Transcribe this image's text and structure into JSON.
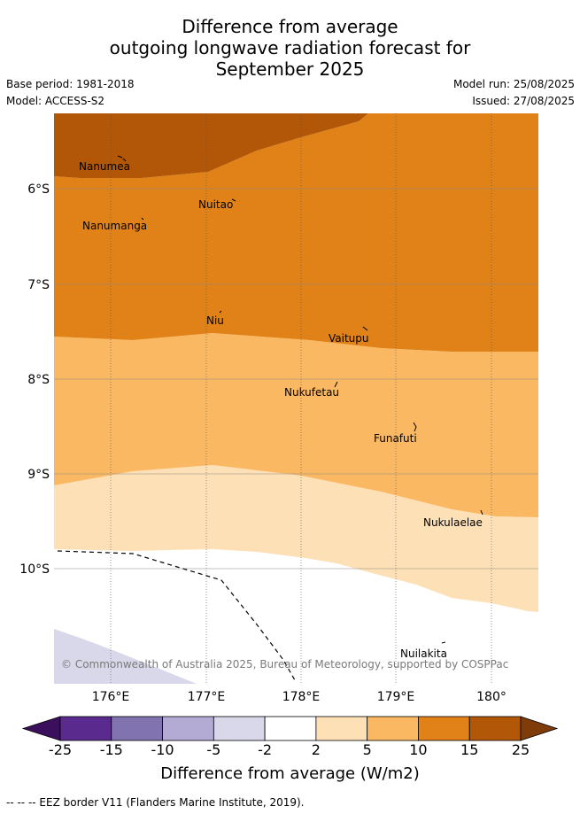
{
  "header": {
    "title_line1": "Difference from average",
    "title_line2": "outgoing longwave radiation forecast for",
    "title_line3": "September 2025",
    "base_period": "Base period: 1981-2018",
    "model": "Model: ACCESS-S2",
    "model_run": "Model run: 25/08/2025",
    "issued": "Issued: 27/08/2025"
  },
  "map": {
    "lon_ticks": [
      "176°E",
      "177°E",
      "178°E",
      "179°E",
      "180°"
    ],
    "lat_ticks": [
      "6°S",
      "7°S",
      "8°S",
      "9°S",
      "10°S"
    ],
    "places": [
      "Nanumea",
      "Nuitao",
      "Nanumanga",
      "Niu",
      "Vaitupu",
      "Nukufetau",
      "Funafuti",
      "Nukulaelae",
      "Nuilakita"
    ],
    "copyright": "© Commonwealth of Australia 2025, Bureau of Meteorology, supported by COSPPac"
  },
  "colorbar": {
    "labels": [
      "-25",
      "-15",
      "-10",
      "-5",
      "-2",
      "2",
      "5",
      "10",
      "15",
      "25"
    ],
    "colors": [
      "#3b0f5c",
      "#5b2a8e",
      "#8173b0",
      "#b3abd3",
      "#d8d8ea",
      "#ffffff",
      "#fde0b6",
      "#fbb862",
      "#e08218",
      "#b15707",
      "#7f3b08"
    ],
    "title": "Difference from average (W/m2)"
  },
  "footer": {
    "legend": "--  --  -- EEZ border V11 (Flanders Marine Institute, 2019)."
  }
}
